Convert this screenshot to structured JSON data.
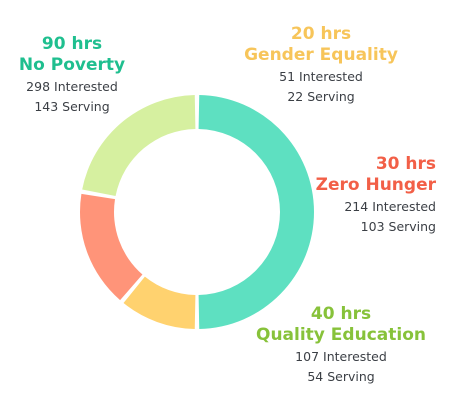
{
  "chart_data": {
    "type": "pie",
    "donut": true,
    "series": [
      {
        "name": "No Poverty",
        "hours_label": "90 hrs",
        "hours": 90,
        "interested_label": "298 Interested",
        "serving_label": "143 Serving",
        "color": "#5ee0c1"
      },
      {
        "name": "Gender Equality",
        "hours_label": "20 hrs",
        "hours": 20,
        "interested_label": "51 Interested",
        "serving_label": "22 Serving",
        "color": "#ffd26f"
      },
      {
        "name": "Zero Hunger",
        "hours_label": "30 hrs",
        "hours": 30,
        "interested_label": "214 Interested",
        "serving_label": "103 Serving",
        "color": "#ff9479"
      },
      {
        "name": "Quality Education",
        "hours_label": "40 hrs",
        "hours": 40,
        "interested_label": "107 Interested",
        "serving_label": "54 Serving",
        "color": "#d6f0a0"
      }
    ],
    "label_colors": {
      "No Poverty": "#1fbf8f",
      "Gender Equality": "#f7c55a",
      "Zero Hunger": "#f25f47",
      "Quality Education": "#87c23a"
    }
  }
}
